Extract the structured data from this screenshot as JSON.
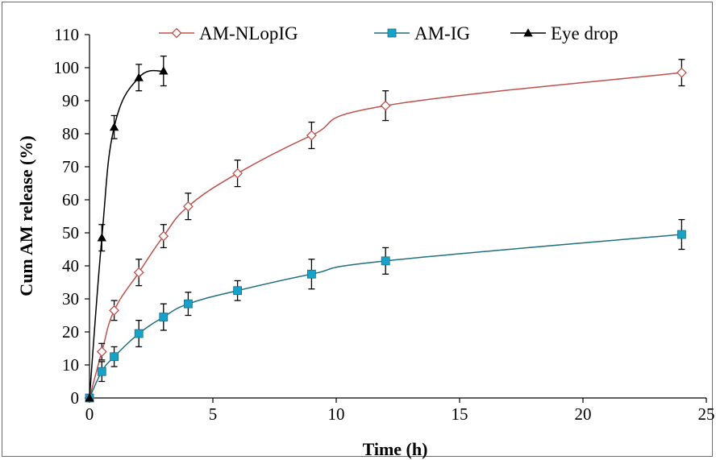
{
  "chart_data": {
    "type": "line",
    "xlabel": "Time (h)",
    "ylabel": "Cum AM release (%)",
    "xlim": [
      0,
      25
    ],
    "ylim": [
      0,
      110
    ],
    "x_ticks": [
      0,
      5,
      10,
      15,
      20,
      25
    ],
    "y_ticks": [
      0,
      10,
      20,
      30,
      40,
      50,
      60,
      70,
      80,
      90,
      100,
      110
    ],
    "grid": false,
    "legend_position": "top",
    "series": [
      {
        "name": "AM-NLopIG",
        "marker": "open-diamond",
        "color": "#c0504d",
        "marker_color": "#c0504d",
        "x": [
          0,
          0.5,
          1,
          2,
          3,
          4,
          6,
          9,
          12,
          24
        ],
        "y": [
          0,
          14,
          26.5,
          38,
          49,
          58,
          68,
          79.5,
          88.5,
          98.5
        ],
        "error": [
          0,
          2.5,
          3,
          4,
          3.5,
          4,
          4,
          4,
          4.5,
          4
        ]
      },
      {
        "name": "AM-IG",
        "marker": "filled-square",
        "color": "#1f6f7f",
        "marker_color": "#17a2c9",
        "x": [
          0,
          0.5,
          1,
          2,
          3,
          4,
          6,
          9,
          12,
          24
        ],
        "y": [
          0,
          8,
          12.5,
          19.5,
          24.5,
          28.5,
          32.5,
          37.5,
          41.5,
          49.5
        ],
        "error": [
          0,
          3,
          3,
          4,
          4,
          3.5,
          3,
          4.5,
          4,
          4.5
        ]
      },
      {
        "name": "Eye drop",
        "marker": "filled-triangle",
        "color": "#000000",
        "marker_color": "#000000",
        "x": [
          0,
          0.5,
          1,
          2,
          3
        ],
        "y": [
          0,
          48.5,
          82,
          97,
          99
        ],
        "error": [
          0,
          4,
          3.5,
          4,
          4.5
        ]
      }
    ]
  }
}
